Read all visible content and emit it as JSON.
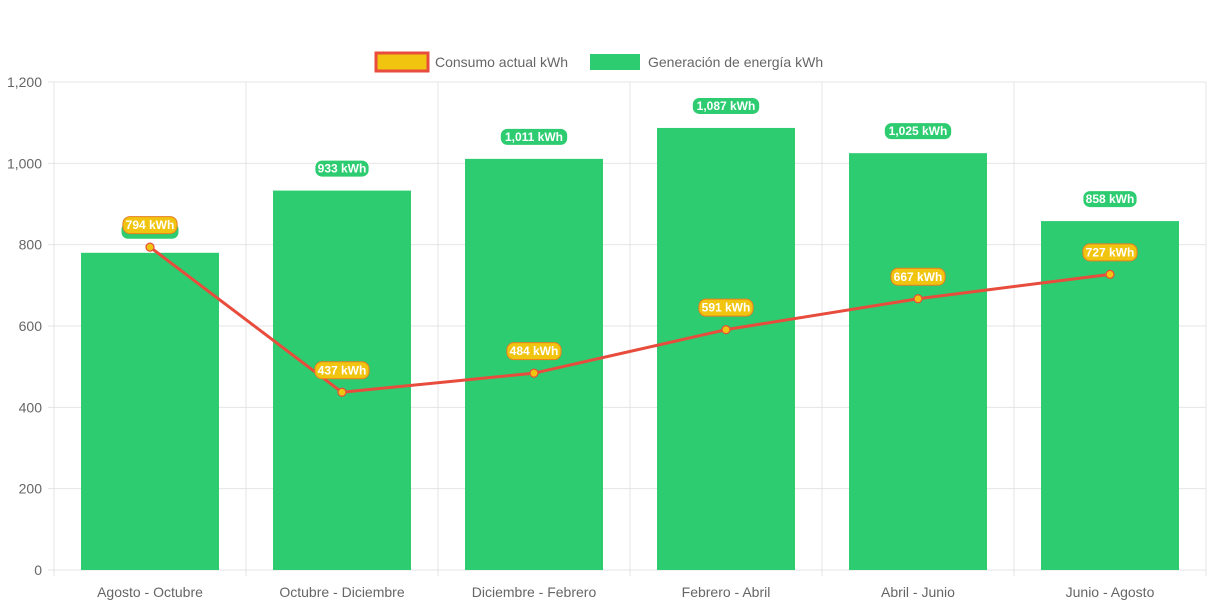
{
  "chart_data": {
    "type": "bar",
    "title": "",
    "xlabel": "",
    "ylabel": "",
    "ylim": [
      0,
      1200
    ],
    "yticks": [
      0,
      200,
      400,
      600,
      800,
      1000,
      1200
    ],
    "ytick_labels": [
      "0",
      "200",
      "400",
      "600",
      "800",
      "1,000",
      "1,200"
    ],
    "grid": true,
    "legend_position": "top-center",
    "categories": [
      "Agosto - Octubre",
      "Octubre - Diciembre",
      "Diciembre - Febrero",
      "Febrero - Abril",
      "Abril - Junio",
      "Junio - Agosto"
    ],
    "series": [
      {
        "name": "Consumo actual kWh",
        "type": "line",
        "color": "#e74c3c",
        "fill": "#f1c40f",
        "values": [
          794,
          437,
          484,
          591,
          667,
          727
        ],
        "labels": [
          "794 kWh",
          "437 kWh",
          "484 kWh",
          "591 kWh",
          "667 kWh",
          "727 kWh"
        ]
      },
      {
        "name": "Generación de energía kWh",
        "type": "bar",
        "color": "#2ecc71",
        "values": [
          780,
          933,
          1011,
          1087,
          1025,
          858
        ],
        "labels": [
          "",
          "933 kWh",
          "1,011 kWh",
          "1,087 kWh",
          "1,025 kWh",
          "858 kWh"
        ]
      }
    ]
  }
}
